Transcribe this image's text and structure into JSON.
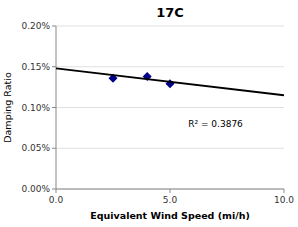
{
  "chart_data": {
    "type": "scatter",
    "title": "17C",
    "xlabel": "Equivalent Wind Speed (mi/h)",
    "ylabel": "Damping Ratio",
    "xlim": [
      0,
      10
    ],
    "ylim": [
      0,
      0.002
    ],
    "xticks": [
      {
        "value": 0,
        "label": "0.0"
      },
      {
        "value": 5,
        "label": "5.0"
      },
      {
        "value": 10,
        "label": "10.0"
      }
    ],
    "yticks": [
      {
        "value": 0,
        "label": "0.00%"
      },
      {
        "value": 0.0005,
        "label": "0.05%"
      },
      {
        "value": 0.001,
        "label": "0.10%"
      },
      {
        "value": 0.0015,
        "label": "0.15%"
      },
      {
        "value": 0.002,
        "label": "0.20%"
      }
    ],
    "grid": true,
    "series": [
      {
        "type": "scatter",
        "x": [
          2.5,
          4.0,
          5.0
        ],
        "values": [
          0.00136,
          0.00138,
          0.00129
        ],
        "color": "#00008B",
        "marker": "diamond"
      },
      {
        "type": "line",
        "x": [
          0,
          10
        ],
        "values": [
          0.00148,
          0.00115
        ],
        "color": "#000000"
      }
    ],
    "annotation": "R² = 0.3876"
  }
}
